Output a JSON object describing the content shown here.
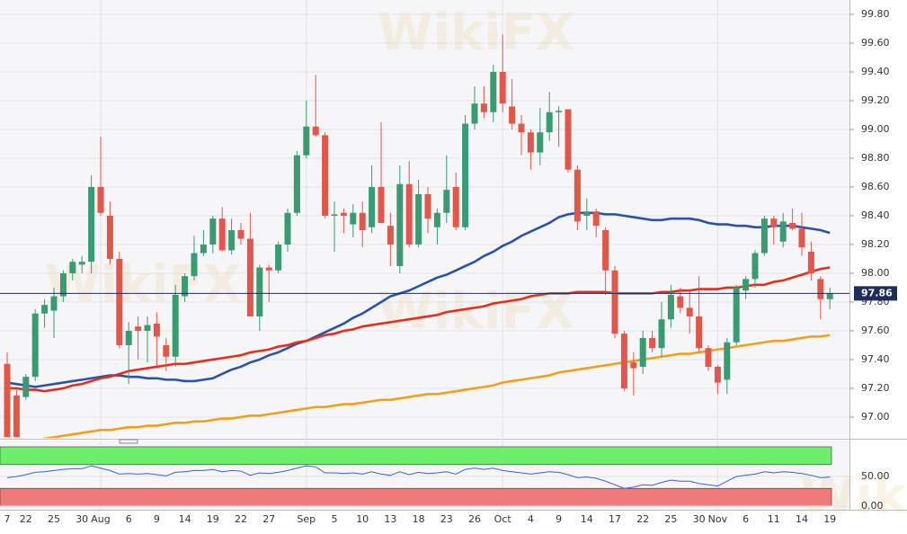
{
  "chart_data": {
    "type": "candlestick",
    "watermark": "WikiFX",
    "categories": [
      "7",
      null,
      "22",
      null,
      null,
      "25",
      null,
      null,
      "30",
      null,
      "Aug",
      null,
      null,
      "6",
      null,
      null,
      "9",
      null,
      null,
      "14",
      null,
      null,
      "19",
      null,
      null,
      "22",
      null,
      null,
      "27",
      null,
      null,
      null,
      "Sep",
      null,
      null,
      "5",
      null,
      null,
      "10",
      null,
      null,
      "13",
      null,
      null,
      "18",
      null,
      null,
      "23",
      null,
      null,
      "26",
      null,
      null,
      "Oct",
      null,
      null,
      "4",
      null,
      null,
      "9",
      null,
      null,
      "14",
      null,
      null,
      "17",
      null,
      null,
      "22",
      null,
      null,
      "25",
      null,
      null,
      "30",
      null,
      "Nov",
      null,
      null,
      "6",
      null,
      null,
      "11",
      null,
      null,
      "14",
      null,
      null,
      "19"
    ],
    "open": [
      97.37,
      97.15,
      97.14,
      97.28,
      97.72,
      97.74,
      97.84,
      98.0,
      98.06,
      98.08,
      98.6,
      98.4,
      98.1,
      97.5,
      97.63,
      97.6,
      97.65,
      97.5,
      97.42,
      97.84,
      97.98,
      98.14,
      98.2,
      98.38,
      98.16,
      98.3,
      98.24,
      97.7,
      98.04,
      98.02,
      98.2,
      98.42,
      98.82,
      99.02,
      98.96,
      98.4,
      98.42,
      98.34,
      98.42,
      98.32,
      98.6,
      98.33,
      98.05,
      98.62,
      98.2,
      98.55,
      98.32,
      98.42,
      98.6,
      98.32,
      99.04,
      99.18,
      99.12,
      99.4,
      99.16,
      99.04,
      98.98,
      98.84,
      98.98,
      99.12,
      99.14,
      98.72,
      98.4,
      98.43,
      98.3,
      98.02,
      97.58,
      97.38,
      97.35,
      97.55,
      97.48,
      97.68,
      97.84,
      97.76,
      97.7,
      97.48,
      97.35,
      97.26,
      97.52,
      97.88,
      97.96,
      98.14,
      98.38,
      98.22,
      98.35,
      98.31,
      98.15,
      97.96,
      97.82
    ],
    "high": [
      97.45,
      97.2,
      97.3,
      97.75,
      97.82,
      97.9,
      98.02,
      98.1,
      98.12,
      98.68,
      98.95,
      98.5,
      98.15,
      97.66,
      97.7,
      97.7,
      97.73,
      97.55,
      97.92,
      98.0,
      98.26,
      98.3,
      98.4,
      98.46,
      98.38,
      98.35,
      98.42,
      98.06,
      98.06,
      98.22,
      98.45,
      98.85,
      99.2,
      99.38,
      98.98,
      98.5,
      98.45,
      98.48,
      98.5,
      98.75,
      99.05,
      98.42,
      98.75,
      98.78,
      98.65,
      98.6,
      98.45,
      98.82,
      98.7,
      99.1,
      99.3,
      99.3,
      99.45,
      99.66,
      99.35,
      99.1,
      99.0,
      99.15,
      99.26,
      99.16,
      99.14,
      98.75,
      98.52,
      98.45,
      98.32,
      98.05,
      97.6,
      97.45,
      97.6,
      97.6,
      97.8,
      97.92,
      97.9,
      97.88,
      97.98,
      97.5,
      97.36,
      97.55,
      97.92,
      97.98,
      98.16,
      98.4,
      98.4,
      98.42,
      98.45,
      98.42,
      98.22,
      97.98,
      97.9
    ],
    "low": [
      96.86,
      96.86,
      97.12,
      97.25,
      97.62,
      97.55,
      97.8,
      97.95,
      98.0,
      98.0,
      98.4,
      98.06,
      97.48,
      97.23,
      97.4,
      97.38,
      97.35,
      97.32,
      97.35,
      97.8,
      97.95,
      98.12,
      98.14,
      98.15,
      98.13,
      98.2,
      97.7,
      97.6,
      97.8,
      98.0,
      98.15,
      98.4,
      98.8,
      98.95,
      98.38,
      98.15,
      98.28,
      98.25,
      98.18,
      98.28,
      98.35,
      98.05,
      98.0,
      98.18,
      98.18,
      98.28,
      98.2,
      98.35,
      98.3,
      98.3,
      99.0,
      99.08,
      99.05,
      99.12,
      99.0,
      98.82,
      98.72,
      98.75,
      98.92,
      98.88,
      98.7,
      98.3,
      98.3,
      98.25,
      97.85,
      97.55,
      97.18,
      97.15,
      97.3,
      97.45,
      97.42,
      97.62,
      97.72,
      97.58,
      97.45,
      97.32,
      97.16,
      97.16,
      97.5,
      97.82,
      97.9,
      98.12,
      98.2,
      98.18,
      98.3,
      98.12,
      97.95,
      97.68,
      97.75
    ],
    "close": [
      96.86,
      96.86,
      97.28,
      97.72,
      97.78,
      97.84,
      98.0,
      98.08,
      98.08,
      98.6,
      98.42,
      98.1,
      97.5,
      97.6,
      97.6,
      97.64,
      97.56,
      97.42,
      97.85,
      97.98,
      98.14,
      98.2,
      98.38,
      98.16,
      98.3,
      98.24,
      97.7,
      98.04,
      98.02,
      98.2,
      98.42,
      98.82,
      99.02,
      98.96,
      98.4,
      98.41,
      98.4,
      98.42,
      98.3,
      98.6,
      98.35,
      98.2,
      98.62,
      98.2,
      98.55,
      98.38,
      98.42,
      98.58,
      98.32,
      99.04,
      99.18,
      99.12,
      99.4,
      99.18,
      99.04,
      98.98,
      98.84,
      98.98,
      99.12,
      99.13,
      98.72,
      98.36,
      98.43,
      98.33,
      98.02,
      97.58,
      97.2,
      97.34,
      97.55,
      97.48,
      97.68,
      97.85,
      97.76,
      97.7,
      97.48,
      97.35,
      97.24,
      97.52,
      97.9,
      97.96,
      98.14,
      98.38,
      98.32,
      98.36,
      98.31,
      98.18,
      98.0,
      97.82,
      97.86
    ],
    "up_color": "#3a9b73",
    "down_color": "#e2574c",
    "series": [
      {
        "color": "#2a52a8",
        "values": [
          97.24,
          97.23,
          97.22,
          97.21,
          97.22,
          97.23,
          97.24,
          97.25,
          97.26,
          97.27,
          97.28,
          97.29,
          97.29,
          97.28,
          97.28,
          97.27,
          97.27,
          97.26,
          97.26,
          97.25,
          97.25,
          97.26,
          97.27,
          97.3,
          97.33,
          97.35,
          97.38,
          97.4,
          97.43,
          97.45,
          97.48,
          97.51,
          97.53,
          97.56,
          97.59,
          97.62,
          97.65,
          97.69,
          97.72,
          97.76,
          97.8,
          97.84,
          97.86,
          97.88,
          97.91,
          97.94,
          97.97,
          97.99,
          98.02,
          98.05,
          98.08,
          98.12,
          98.15,
          98.19,
          98.22,
          98.26,
          98.29,
          98.32,
          98.35,
          98.39,
          98.41,
          98.42,
          98.42,
          98.42,
          98.41,
          98.41,
          98.4,
          98.39,
          98.38,
          98.37,
          98.37,
          98.38,
          98.38,
          98.38,
          98.37,
          98.35,
          98.34,
          98.34,
          98.33,
          98.33,
          98.32,
          98.32,
          98.33,
          98.33,
          98.33,
          98.32,
          98.31,
          98.3,
          98.28
        ]
      },
      {
        "color": "#e0301e",
        "values": [
          97.2,
          97.2,
          97.19,
          97.19,
          97.18,
          97.19,
          97.2,
          97.22,
          97.23,
          97.25,
          97.27,
          97.28,
          97.3,
          97.32,
          97.33,
          97.34,
          97.35,
          97.36,
          97.37,
          97.37,
          97.38,
          97.39,
          97.4,
          97.41,
          97.42,
          97.43,
          97.45,
          97.46,
          97.47,
          97.49,
          97.5,
          97.52,
          97.53,
          97.55,
          97.57,
          97.58,
          97.6,
          97.61,
          97.63,
          97.64,
          97.65,
          97.66,
          97.67,
          97.68,
          97.69,
          97.7,
          97.71,
          97.73,
          97.74,
          97.75,
          97.76,
          97.77,
          97.79,
          97.8,
          97.81,
          97.82,
          97.84,
          97.85,
          97.86,
          97.86,
          97.86,
          97.87,
          97.87,
          97.87,
          97.87,
          97.86,
          97.86,
          97.86,
          97.86,
          97.86,
          97.87,
          97.87,
          97.88,
          97.88,
          97.89,
          97.89,
          97.89,
          97.9,
          97.9,
          97.91,
          97.92,
          97.92,
          97.94,
          97.95,
          97.97,
          97.99,
          98.01,
          98.03,
          98.04
        ]
      },
      {
        "color": "#f0a01c",
        "values": [
          96.82,
          96.83,
          96.84,
          96.84,
          96.85,
          96.86,
          96.87,
          96.88,
          96.89,
          96.9,
          96.91,
          96.91,
          96.92,
          96.93,
          96.93,
          96.94,
          96.94,
          96.95,
          96.96,
          96.96,
          96.97,
          96.97,
          96.98,
          96.99,
          96.99,
          97.0,
          97.01,
          97.01,
          97.02,
          97.03,
          97.04,
          97.05,
          97.06,
          97.07,
          97.07,
          97.08,
          97.09,
          97.09,
          97.1,
          97.11,
          97.12,
          97.12,
          97.13,
          97.14,
          97.15,
          97.16,
          97.16,
          97.17,
          97.18,
          97.19,
          97.2,
          97.21,
          97.22,
          97.24,
          97.25,
          97.26,
          97.27,
          97.28,
          97.29,
          97.31,
          97.32,
          97.33,
          97.34,
          97.35,
          97.36,
          97.37,
          97.38,
          97.39,
          97.4,
          97.41,
          97.42,
          97.43,
          97.44,
          97.44,
          97.45,
          97.46,
          97.47,
          97.48,
          97.49,
          97.5,
          97.51,
          97.52,
          97.53,
          97.53,
          97.54,
          97.55,
          97.56,
          97.56,
          97.57
        ]
      }
    ],
    "last_price": 97.86,
    "ylim": [
      96.856,
      99.9
    ],
    "yticks": [
      {
        "value": 97.0,
        "label": "97.00"
      },
      {
        "value": 97.2,
        "label": "97.20"
      },
      {
        "value": 97.4,
        "label": "97.40"
      },
      {
        "value": 97.6,
        "label": "97.60"
      },
      {
        "value": 97.8,
        "label": "97.80"
      },
      {
        "value": 98.0,
        "label": "98.00"
      },
      {
        "value": 98.2,
        "label": "98.20"
      },
      {
        "value": 98.4,
        "label": "98.40"
      },
      {
        "value": 98.6,
        "label": "98.60"
      },
      {
        "value": 98.8,
        "label": "98.80"
      },
      {
        "value": 99.0,
        "label": "99.00"
      },
      {
        "value": 99.2,
        "label": "99.20"
      },
      {
        "value": 99.4,
        "label": "99.40"
      },
      {
        "value": 99.6,
        "label": "99.60"
      },
      {
        "value": 99.8,
        "label": "99.80"
      }
    ],
    "indicator": {
      "color": "#3d5fd0",
      "values": [
        48,
        50,
        53,
        57,
        58,
        60,
        62,
        63,
        63,
        68,
        64,
        60,
        54,
        55,
        54,
        55,
        53,
        51,
        57,
        58,
        60,
        60,
        62,
        58,
        60,
        59,
        52,
        56,
        55,
        57,
        60,
        64,
        68,
        66,
        56,
        56,
        55,
        56,
        54,
        58,
        54,
        52,
        58,
        53,
        57,
        55,
        56,
        58,
        54,
        62,
        64,
        62,
        64,
        60,
        58,
        56,
        54,
        56,
        58,
        57,
        53,
        48,
        49,
        47,
        42,
        36,
        30,
        32,
        36,
        35,
        40,
        44,
        42,
        42,
        38,
        36,
        34,
        42,
        50,
        52,
        54,
        58,
        56,
        58,
        57,
        55,
        52,
        48,
        49
      ],
      "ylim": [
        0,
        100
      ],
      "yticks": [
        {
          "value": 0,
          "label": "0.00"
        },
        {
          "value": 50,
          "label": "50.00"
        }
      ],
      "upper_band": [
        70,
        100
      ],
      "lower_band": [
        0,
        30
      ],
      "upper_color": "#6cf06c",
      "lower_color": "#f07a7a"
    }
  }
}
